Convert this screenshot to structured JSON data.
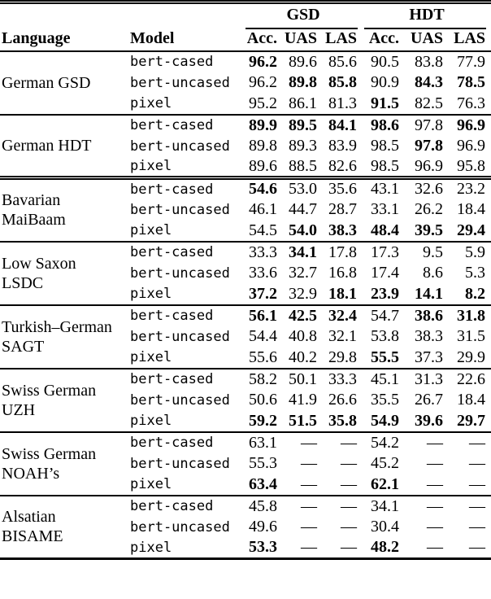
{
  "page": {
    "background_color": "#ffffff",
    "text_color": "#000000"
  },
  "table": {
    "header": {
      "language": "Language",
      "model": "Model",
      "group_gsd": "GSD",
      "group_hdt": "HDT",
      "metrics": [
        "Acc.",
        "UAS",
        "LAS"
      ]
    },
    "missing_marker": "—",
    "groups": [
      {
        "language_lines": [
          "German GSD"
        ],
        "separator": "none",
        "rows": [
          {
            "model": "bert-cased",
            "cells": [
              {
                "v": "96.2",
                "b": true
              },
              {
                "v": "89.6"
              },
              {
                "v": "85.6"
              },
              {
                "v": "90.5"
              },
              {
                "v": "83.8"
              },
              {
                "v": "77.9"
              }
            ]
          },
          {
            "model": "bert-uncased",
            "cells": [
              {
                "v": "96.2"
              },
              {
                "v": "89.8",
                "b": true
              },
              {
                "v": "85.8",
                "b": true
              },
              {
                "v": "90.9"
              },
              {
                "v": "84.3",
                "b": true
              },
              {
                "v": "78.5",
                "b": true
              }
            ]
          },
          {
            "model": "pixel",
            "cells": [
              {
                "v": "95.2"
              },
              {
                "v": "86.1"
              },
              {
                "v": "81.3"
              },
              {
                "v": "91.5",
                "b": true
              },
              {
                "v": "82.5"
              },
              {
                "v": "76.3"
              }
            ]
          }
        ]
      },
      {
        "language_lines": [
          "German HDT"
        ],
        "separator": "single",
        "rows": [
          {
            "model": "bert-cased",
            "cells": [
              {
                "v": "89.9",
                "b": true
              },
              {
                "v": "89.5",
                "b": true
              },
              {
                "v": "84.1",
                "b": true
              },
              {
                "v": "98.6",
                "b": true
              },
              {
                "v": "97.8"
              },
              {
                "v": "96.9",
                "b": true
              }
            ]
          },
          {
            "model": "bert-uncased",
            "cells": [
              {
                "v": "89.8"
              },
              {
                "v": "89.3"
              },
              {
                "v": "83.9"
              },
              {
                "v": "98.5"
              },
              {
                "v": "97.8",
                "b": true
              },
              {
                "v": "96.9"
              }
            ]
          },
          {
            "model": "pixel",
            "cells": [
              {
                "v": "89.6"
              },
              {
                "v": "88.5"
              },
              {
                "v": "82.6"
              },
              {
                "v": "98.5"
              },
              {
                "v": "96.9"
              },
              {
                "v": "95.8"
              }
            ]
          }
        ]
      },
      {
        "language_lines": [
          "Bavarian",
          "MaiBaam"
        ],
        "separator": "double",
        "rows": [
          {
            "model": "bert-cased",
            "cells": [
              {
                "v": "54.6",
                "b": true
              },
              {
                "v": "53.0"
              },
              {
                "v": "35.6"
              },
              {
                "v": "43.1"
              },
              {
                "v": "32.6"
              },
              {
                "v": "23.2"
              }
            ]
          },
          {
            "model": "bert-uncased",
            "cells": [
              {
                "v": "46.1"
              },
              {
                "v": "44.7"
              },
              {
                "v": "28.7"
              },
              {
                "v": "33.1"
              },
              {
                "v": "26.2"
              },
              {
                "v": "18.4"
              }
            ]
          },
          {
            "model": "pixel",
            "cells": [
              {
                "v": "54.5"
              },
              {
                "v": "54.0",
                "b": true
              },
              {
                "v": "38.3",
                "b": true
              },
              {
                "v": "48.4",
                "b": true
              },
              {
                "v": "39.5",
                "b": true
              },
              {
                "v": "29.4",
                "b": true
              }
            ]
          }
        ]
      },
      {
        "language_lines": [
          "Low Saxon",
          "LSDC"
        ],
        "separator": "single",
        "rows": [
          {
            "model": "bert-cased",
            "cells": [
              {
                "v": "33.3"
              },
              {
                "v": "34.1",
                "b": true
              },
              {
                "v": "17.8"
              },
              {
                "v": "17.3"
              },
              {
                "v": "9.5"
              },
              {
                "v": "5.9"
              }
            ]
          },
          {
            "model": "bert-uncased",
            "cells": [
              {
                "v": "33.6"
              },
              {
                "v": "32.7"
              },
              {
                "v": "16.8"
              },
              {
                "v": "17.4"
              },
              {
                "v": "8.6"
              },
              {
                "v": "5.3"
              }
            ]
          },
          {
            "model": "pixel",
            "cells": [
              {
                "v": "37.2",
                "b": true
              },
              {
                "v": "32.9"
              },
              {
                "v": "18.1",
                "b": true
              },
              {
                "v": "23.9",
                "b": true
              },
              {
                "v": "14.1",
                "b": true
              },
              {
                "v": "8.2",
                "b": true
              }
            ]
          }
        ]
      },
      {
        "language_lines": [
          "Turkish–German",
          "SAGT"
        ],
        "separator": "single",
        "rows": [
          {
            "model": "bert-cased",
            "cells": [
              {
                "v": "56.1",
                "b": true
              },
              {
                "v": "42.5",
                "b": true
              },
              {
                "v": "32.4",
                "b": true
              },
              {
                "v": "54.7"
              },
              {
                "v": "38.6",
                "b": true
              },
              {
                "v": "31.8",
                "b": true
              }
            ]
          },
          {
            "model": "bert-uncased",
            "cells": [
              {
                "v": "54.4"
              },
              {
                "v": "40.8"
              },
              {
                "v": "32.1"
              },
              {
                "v": "53.8"
              },
              {
                "v": "38.3"
              },
              {
                "v": "31.5"
              }
            ]
          },
          {
            "model": "pixel",
            "cells": [
              {
                "v": "55.6"
              },
              {
                "v": "40.2"
              },
              {
                "v": "29.8"
              },
              {
                "v": "55.5",
                "b": true
              },
              {
                "v": "37.3"
              },
              {
                "v": "29.9"
              }
            ]
          }
        ]
      },
      {
        "language_lines": [
          "Swiss German",
          "UZH"
        ],
        "separator": "single",
        "rows": [
          {
            "model": "bert-cased",
            "cells": [
              {
                "v": "58.2"
              },
              {
                "v": "50.1"
              },
              {
                "v": "33.3"
              },
              {
                "v": "45.1"
              },
              {
                "v": "31.3"
              },
              {
                "v": "22.6"
              }
            ]
          },
          {
            "model": "bert-uncased",
            "cells": [
              {
                "v": "50.6"
              },
              {
                "v": "41.9"
              },
              {
                "v": "26.6"
              },
              {
                "v": "35.5"
              },
              {
                "v": "26.7"
              },
              {
                "v": "18.4"
              }
            ]
          },
          {
            "model": "pixel",
            "cells": [
              {
                "v": "59.2",
                "b": true
              },
              {
                "v": "51.5",
                "b": true
              },
              {
                "v": "35.8",
                "b": true
              },
              {
                "v": "54.9",
                "b": true
              },
              {
                "v": "39.6",
                "b": true
              },
              {
                "v": "29.7",
                "b": true
              }
            ]
          }
        ]
      },
      {
        "language_lines": [
          "Swiss German",
          "NOAH’s"
        ],
        "separator": "single",
        "rows": [
          {
            "model": "bert-cased",
            "cells": [
              {
                "v": "63.1"
              },
              {
                "v": "—"
              },
              {
                "v": "—"
              },
              {
                "v": "54.2"
              },
              {
                "v": "—"
              },
              {
                "v": "—"
              }
            ]
          },
          {
            "model": "bert-uncased",
            "cells": [
              {
                "v": "55.3"
              },
              {
                "v": "—"
              },
              {
                "v": "—"
              },
              {
                "v": "45.2"
              },
              {
                "v": "—"
              },
              {
                "v": "—"
              }
            ]
          },
          {
            "model": "pixel",
            "cells": [
              {
                "v": "63.4",
                "b": true
              },
              {
                "v": "—"
              },
              {
                "v": "—"
              },
              {
                "v": "62.1",
                "b": true
              },
              {
                "v": "—"
              },
              {
                "v": "—"
              }
            ]
          }
        ]
      },
      {
        "language_lines": [
          "Alsatian",
          "BISAME"
        ],
        "separator": "single",
        "rows": [
          {
            "model": "bert-cased",
            "cells": [
              {
                "v": "45.8"
              },
              {
                "v": "—"
              },
              {
                "v": "—"
              },
              {
                "v": "34.1"
              },
              {
                "v": "—"
              },
              {
                "v": "—"
              }
            ]
          },
          {
            "model": "bert-uncased",
            "cells": [
              {
                "v": "49.6"
              },
              {
                "v": "—"
              },
              {
                "v": "—"
              },
              {
                "v": "30.4"
              },
              {
                "v": "—"
              },
              {
                "v": "—"
              }
            ]
          },
          {
            "model": "pixel",
            "cells": [
              {
                "v": "53.3",
                "b": true
              },
              {
                "v": "—"
              },
              {
                "v": "—"
              },
              {
                "v": "48.2",
                "b": true
              },
              {
                "v": "—"
              },
              {
                "v": "—"
              }
            ]
          }
        ]
      }
    ]
  }
}
